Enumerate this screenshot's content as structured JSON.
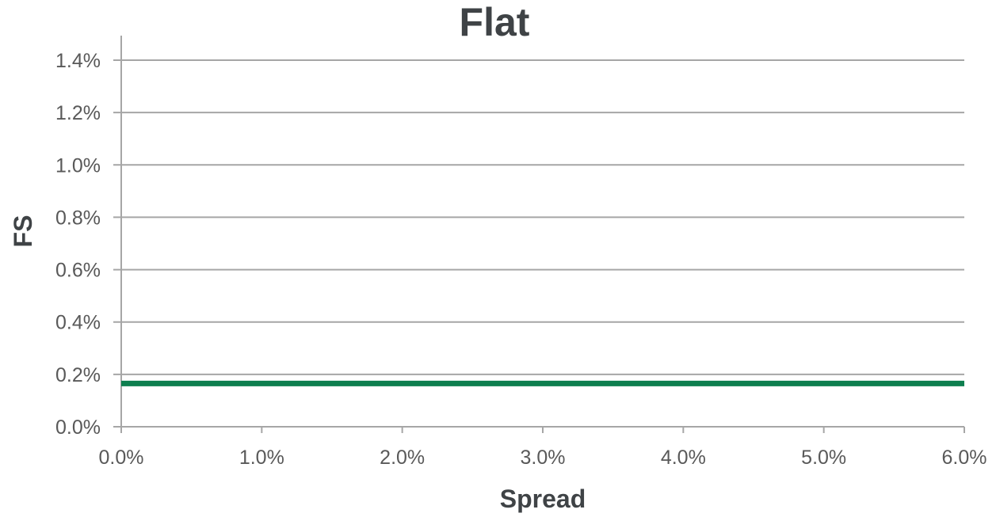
{
  "chart_data": {
    "type": "line",
    "title": "Flat",
    "xlabel": "Spread",
    "ylabel": "FS",
    "xlim": [
      0,
      0.06
    ],
    "ylim": [
      0,
      0.014
    ],
    "x_ticks": [
      "0.0%",
      "1.0%",
      "2.0%",
      "3.0%",
      "4.0%",
      "5.0%",
      "6.0%"
    ],
    "y_ticks": [
      "0.0%",
      "0.2%",
      "0.4%",
      "0.6%",
      "0.8%",
      "1.0%",
      "1.2%",
      "1.4%"
    ],
    "grid": "horizontal",
    "legend": "none",
    "series": [
      {
        "x": [
          0,
          0.06
        ],
        "y": [
          0.00165,
          0.00165
        ],
        "color": "#0e7f4f"
      }
    ],
    "gridline_color": "#a6a6a6"
  }
}
